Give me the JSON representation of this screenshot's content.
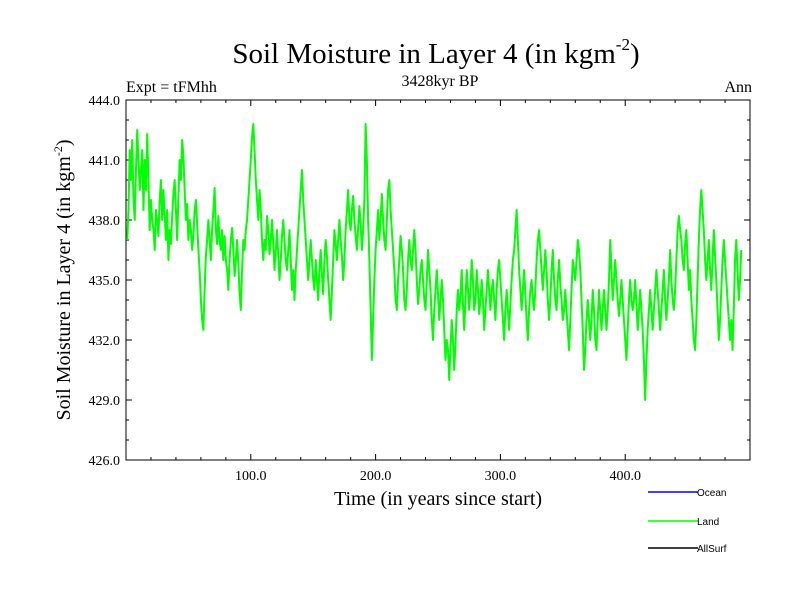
{
  "chart_data": {
    "type": "line",
    "title_main": "Soil Moisture in Layer 4 (in kgm",
    "title_sup": "-2",
    "title_close": ")",
    "subtitle": "3428kyr BP",
    "left_label": "Expt = tFMhh",
    "right_label": "Ann",
    "xlabel": "Time (in years since start)",
    "ylabel_main": "Soil Moisture in Layer 4 (in kgm",
    "ylabel_sup": "-2",
    "ylabel_close": ")",
    "xlim": [
      0,
      500
    ],
    "ylim": [
      426,
      444
    ],
    "x_ticks": [
      100,
      200,
      300,
      400
    ],
    "x_tick_labels": [
      "100.0",
      "200.0",
      "300.0",
      "400.0"
    ],
    "y_ticks": [
      426,
      429,
      432,
      435,
      438,
      441,
      444
    ],
    "y_tick_labels": [
      "426.0",
      "429.0",
      "432.0",
      "435.0",
      "438.0",
      "441.0",
      "444.0"
    ],
    "legend_position": "bottom-right, below plot",
    "series": [
      {
        "name": "Ocean",
        "color": "#0000ff",
        "values": []
      },
      {
        "name": "Land",
        "color": "#00ff00",
        "x_start": 1,
        "x_step": 1,
        "values": [
          437.0,
          438.5,
          441.5,
          440.0,
          442.0,
          439.0,
          438.0,
          440.5,
          442.5,
          441.0,
          439.5,
          440.5,
          441.5,
          438.5,
          441.0,
          439.5,
          442.3,
          440.0,
          437.5,
          439.0,
          438.0,
          437.5,
          436.5,
          438.5,
          438.0,
          437.2,
          439.0,
          440.0,
          438.0,
          439.5,
          438.2,
          437.0,
          438.5,
          436.0,
          437.5,
          436.8,
          438.2,
          439.3,
          440.0,
          438.5,
          437.0,
          439.2,
          441.0,
          440.0,
          442.0,
          441.2,
          439.5,
          438.0,
          438.8,
          437.0,
          438.0,
          437.5,
          436.5,
          437.2,
          438.5,
          439.0,
          437.8,
          436.5,
          435.5,
          434.0,
          433.0,
          432.5,
          434.5,
          436.2,
          437.0,
          438.0,
          437.0,
          436.0,
          437.5,
          438.5,
          439.6,
          437.5,
          436.8,
          438.2,
          437.0,
          436.5,
          437.5,
          436.0,
          437.2,
          436.0,
          435.5,
          434.5,
          436.0,
          437.0,
          437.6,
          436.5,
          435.2,
          436.0,
          437.0,
          435.8,
          434.4,
          433.5,
          435.5,
          437.0,
          436.5,
          437.5,
          438.0,
          439.0,
          440.0,
          441.0,
          442.2,
          442.8,
          441.5,
          440.0,
          439.0,
          438.0,
          439.5,
          438.5,
          437.0,
          436.0,
          437.0,
          436.5,
          438.2,
          437.5,
          436.3,
          437.0,
          438.0,
          436.8,
          435.5,
          436.5,
          437.5,
          436.2,
          435.0,
          436.0,
          437.2,
          438.0,
          437.0,
          436.0,
          435.5,
          436.5,
          437.5,
          436.0,
          434.5,
          435.5,
          434.0,
          435.5,
          436.5,
          437.5,
          438.5,
          439.5,
          440.5,
          439.0,
          438.0,
          437.0,
          436.0,
          435.0,
          436.0,
          437.0,
          436.0,
          435.0,
          434.5,
          436.0,
          435.0,
          434.0,
          435.5,
          436.5,
          435.2,
          434.3,
          436.0,
          437.0,
          436.2,
          435.0,
          434.0,
          433.0,
          434.5,
          436.0,
          437.5,
          436.8,
          436.0,
          437.0,
          438.0,
          437.0,
          436.2,
          435.0,
          436.0,
          437.5,
          438.5,
          439.5,
          438.0,
          437.5,
          438.5,
          439.2,
          438.0,
          437.2,
          436.5,
          437.6,
          438.7,
          437.8,
          436.5,
          437.5,
          439.0,
          442.8,
          441.0,
          438.0,
          436.0,
          433.5,
          431.0,
          433.0,
          435.0,
          436.5,
          437.5,
          438.5,
          437.0,
          438.0,
          439.3,
          438.0,
          437.0,
          436.5,
          438.0,
          439.5,
          440.0,
          438.5,
          437.5,
          436.5,
          435.5,
          434.0,
          433.5,
          435.0,
          436.0,
          437.2,
          436.5,
          435.5,
          434.0,
          433.5,
          434.5,
          436.0,
          437.0,
          436.0,
          435.5,
          436.5,
          437.5,
          436.5,
          435.0,
          433.8,
          434.5,
          435.5,
          436.0,
          435.0,
          434.0,
          433.5,
          435.0,
          436.5,
          435.5,
          434.5,
          433.0,
          432.0,
          433.5,
          434.5,
          435.5,
          434.3,
          433.0,
          434.0,
          435.0,
          434.0,
          432.5,
          431.0,
          432.0,
          431.5,
          430.0,
          431.5,
          433.0,
          432.0,
          430.5,
          431.8,
          433.5,
          434.5,
          433.5,
          434.2,
          435.5,
          433.8,
          432.5,
          434.0,
          435.5,
          434.5,
          433.5,
          434.5,
          436.0,
          435.0,
          433.5,
          434.0,
          435.5,
          434.5,
          433.3,
          434.0,
          435.0,
          434.0,
          432.5,
          433.5,
          434.5,
          435.5,
          434.5,
          433.5,
          434.5,
          435.0,
          434.0,
          433.0,
          434.5,
          435.5,
          436.0,
          435.0,
          434.0,
          433.0,
          432.0,
          433.5,
          434.5,
          433.5,
          432.5,
          433.8,
          435.0,
          436.0,
          436.5,
          437.5,
          438.5,
          437.0,
          435.5,
          434.5,
          433.5,
          434.5,
          435.5,
          434.3,
          433.0,
          432.0,
          433.5,
          434.5,
          435.0,
          434.0,
          433.5,
          434.5,
          436.0,
          437.0,
          437.5,
          436.5,
          435.5,
          434.5,
          435.5,
          436.5,
          435.5,
          434.0,
          433.0,
          434.0,
          435.5,
          436.5,
          435.0,
          434.0,
          433.5,
          435.0,
          436.0,
          434.8,
          434.0,
          433.0,
          433.5,
          434.5,
          433.5,
          432.5,
          431.5,
          433.0,
          434.5,
          436.0,
          435.5,
          435.0,
          436.0,
          437.0,
          436.5,
          435.5,
          434.0,
          432.5,
          430.5,
          431.5,
          433.0,
          434.0,
          433.0,
          432.0,
          433.0,
          434.5,
          433.5,
          432.0,
          431.5,
          433.0,
          434.5,
          433.5,
          432.5,
          433.5,
          434.5,
          433.5,
          432.5,
          433.5,
          435.0,
          437.0,
          435.5,
          434.0,
          435.0,
          436.0,
          435.0,
          434.0,
          433.2,
          434.0,
          435.0,
          434.0,
          433.0,
          432.0,
          431.0,
          432.5,
          434.0,
          435.0,
          434.0,
          433.5,
          434.0,
          435.0,
          433.8,
          432.5,
          433.5,
          434.5,
          433.5,
          432.5,
          431.0,
          429.0,
          431.0,
          432.5,
          433.5,
          434.5,
          433.5,
          432.5,
          433.5,
          434.5,
          435.5,
          434.5,
          433.5,
          432.5,
          433.5,
          434.5,
          435.5,
          434.0,
          433.0,
          434.0,
          435.0,
          436.5,
          435.0,
          434.0,
          433.5,
          434.5,
          436.0,
          437.5,
          438.2,
          437.5,
          437.0,
          436.0,
          435.5,
          436.8,
          437.5,
          436.0,
          434.5,
          435.5,
          434.0,
          433.0,
          432.0,
          431.5,
          433.0,
          435.0,
          437.0,
          438.5,
          439.5,
          438.5,
          437.5,
          436.0,
          435.0,
          436.0,
          437.0,
          435.5,
          434.5,
          436.0,
          437.5,
          436.2,
          435.0,
          433.5,
          432.0,
          433.0,
          434.5,
          436.0,
          437.0,
          436.0,
          435.0,
          434.0,
          433.0,
          432.0,
          433.0,
          431.5,
          433.5,
          436.0,
          437.0,
          435.5,
          434.0,
          435.0,
          436.5
        ]
      },
      {
        "name": "AllSurf",
        "color": "#000000",
        "values": []
      }
    ]
  }
}
